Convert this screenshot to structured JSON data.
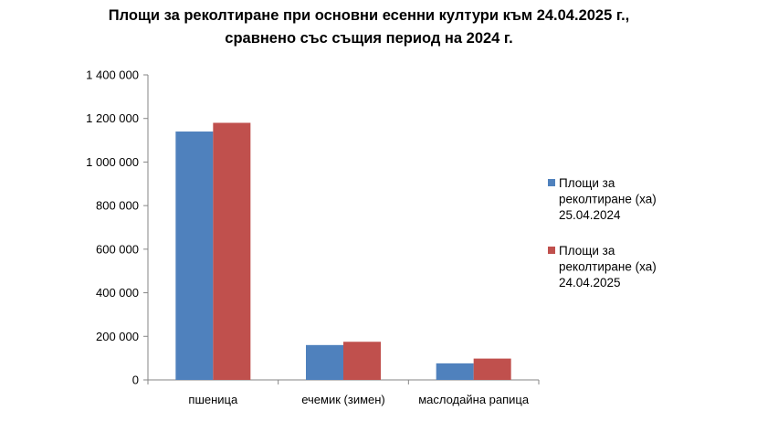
{
  "chart_data": {
    "type": "bar",
    "title_lines": [
      "Площи за реколтиране при основни есенни култури към 24.04.2025 г.,",
      "сравнено със същия период на 2024 г."
    ],
    "categories": [
      "пшеница",
      "ечемик (зимен)",
      "маслодайна рапица"
    ],
    "series": [
      {
        "name_lines": [
          "Площи за",
          "реколтиране (ха)",
          "25.04.2024"
        ],
        "color": "#4F81BD",
        "values": [
          1140000,
          160000,
          76000
        ]
      },
      {
        "name_lines": [
          "Площи за",
          "реколтиране (ха)",
          "24.04.2025"
        ],
        "color": "#C0504D",
        "values": [
          1180000,
          175000,
          98000
        ]
      }
    ],
    "ylim": [
      0,
      1400000
    ],
    "yticks": [
      0,
      200000,
      400000,
      600000,
      800000,
      1000000,
      1200000,
      1400000
    ],
    "ytick_labels": [
      "0",
      "200 000",
      "400 000",
      "600 000",
      "800 000",
      "1 000 000",
      "1 200 000",
      "1 400 000"
    ],
    "grid": false,
    "legend_position": "right"
  }
}
